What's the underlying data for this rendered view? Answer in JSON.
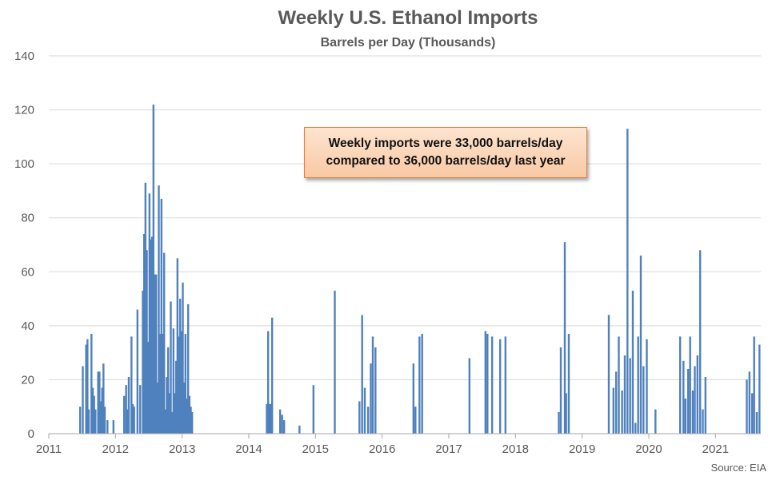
{
  "chart_data": {
    "type": "bar",
    "title": "Weekly U.S. Ethanol Imports",
    "subtitle": "Barrels per Day (Thousands)",
    "source": "Source: EIA",
    "ylim": [
      0,
      140
    ],
    "yticks": [
      0,
      20,
      40,
      60,
      80,
      100,
      120,
      140
    ],
    "xlim": [
      2011,
      2021.68
    ],
    "xticks": [
      2011,
      2012,
      2013,
      2014,
      2015,
      2016,
      2017,
      2018,
      2019,
      2020,
      2021
    ],
    "grid": true,
    "bar_color": "#4f81bd",
    "annotation": {
      "line1": "Weekly imports were 33,000 barrels/day",
      "line2": "compared to 36,000 barrels/day last year"
    },
    "series": [
      {
        "x": [
          2011.47,
          2011.51,
          2011.56,
          2011.58,
          2011.6,
          2011.64,
          2011.66,
          2011.68,
          2011.7,
          2011.74,
          2011.76,
          2011.78,
          2011.8,
          2011.82,
          2011.84,
          2011.86,
          2011.88,
          2011.9,
          2011.97,
          2012.13,
          2012.16,
          2012.18,
          2012.2,
          2012.24,
          2012.26,
          2012.28,
          2012.33,
          2012.37,
          2012.41,
          2012.43,
          2012.45,
          2012.47,
          2012.49,
          2012.51,
          2012.53,
          2012.55,
          2012.57,
          2012.59,
          2012.61,
          2012.63,
          2012.65,
          2012.67,
          2012.69,
          2012.71,
          2012.73,
          2012.75,
          2012.77,
          2012.79,
          2012.81,
          2012.83,
          2012.85,
          2012.87,
          2012.89,
          2012.91,
          2012.93,
          2012.95,
          2012.97,
          2012.99,
          2013.01,
          2013.03,
          2013.05,
          2013.07,
          2013.09,
          2013.11,
          2013.13,
          2013.15,
          2013.17,
          2013.19,
          2013.21,
          2013.23,
          2013.25,
          2013.3,
          2013.34,
          2013.36,
          2013.38,
          2013.4,
          2013.42,
          2013.44,
          2013.46,
          2013.48,
          2013.5,
          2013.52,
          2013.54,
          2013.56,
          2013.58,
          2013.6,
          2013.62,
          2013.64,
          2013.66,
          2013.7,
          2013.74,
          2014.27,
          2014.29,
          2014.31,
          2014.33,
          2014.35,
          2014.47,
          2014.5,
          2014.53,
          2014.76,
          2014.97,
          2015.29,
          2015.66,
          2015.7,
          2015.74,
          2015.79,
          2015.83,
          2015.86,
          2015.9,
          2016.47,
          2016.5,
          2016.56,
          2016.6,
          2017.31,
          2017.55,
          2017.58,
          2017.65,
          2017.77,
          2017.85,
          2018.65,
          2018.68,
          2018.74,
          2018.76,
          2018.8,
          2018.88,
          2019.4,
          2019.47,
          2019.51,
          2019.55,
          2019.6,
          2019.64,
          2019.68,
          2019.72,
          2019.76,
          2019.8,
          2019.84,
          2019.88,
          2019.92,
          2019.97,
          2020.1,
          2020.14,
          2020.47,
          2020.52,
          2020.55,
          2020.59,
          2020.62,
          2020.66,
          2020.69,
          2020.73,
          2020.77,
          2020.81,
          2020.85,
          2020.89,
          2021.47,
          2021.51,
          2021.55,
          2021.58,
          2021.62,
          2021.66
        ]
      }
    ],
    "values_label": "Barrels per Day (Thousands)",
    "values": [
      10,
      25,
      33,
      35,
      9,
      37,
      17,
      14,
      9,
      23,
      23,
      12,
      17,
      26,
      10,
      0,
      5,
      0,
      5,
      14,
      18,
      9,
      21,
      36,
      11,
      10,
      46,
      18,
      53,
      74,
      93,
      68,
      34,
      89,
      72,
      73,
      122,
      59,
      59,
      19,
      92,
      37,
      87,
      37,
      67,
      9,
      21,
      32,
      15,
      49,
      8,
      39,
      15,
      27,
      65,
      36,
      50,
      38,
      56,
      19,
      37,
      13,
      48,
      14,
      10,
      8,
      0,
      0,
      0,
      0,
      0,
      0,
      0,
      0,
      0,
      0,
      0,
      0,
      0,
      0,
      0,
      0,
      0,
      0,
      0,
      0,
      0,
      0,
      0,
      0,
      0,
      11,
      38,
      11,
      11,
      43,
      9,
      7,
      5,
      3,
      18,
      53,
      12,
      44,
      17,
      10,
      26,
      36,
      32,
      26,
      10,
      36,
      37,
      28,
      38,
      37,
      36,
      35,
      36,
      8,
      32,
      71,
      15,
      37,
      0,
      44,
      17,
      23,
      36,
      16,
      29,
      113,
      28,
      53,
      4,
      36,
      66,
      25,
      35,
      9,
      0,
      36,
      27,
      13,
      24,
      36,
      16,
      25,
      29,
      68,
      9,
      21,
      0,
      20,
      23,
      15,
      36,
      8,
      33
    ]
  }
}
